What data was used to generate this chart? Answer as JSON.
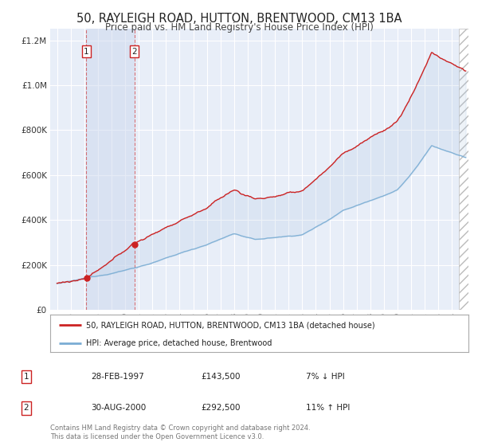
{
  "title": "50, RAYLEIGH ROAD, HUTTON, BRENTWOOD, CM13 1BA",
  "subtitle": "Price paid vs. HM Land Registry's House Price Index (HPI)",
  "title_fontsize": 10.5,
  "subtitle_fontsize": 8.5,
  "background_color": "#ffffff",
  "plot_bg_color": "#e8eef8",
  "grid_color": "#ffffff",
  "hpi_line_color": "#7aadd4",
  "price_line_color": "#cc2222",
  "sale1_date": 1997.16,
  "sale1_price": 143500,
  "sale2_date": 2000.67,
  "sale2_price": 292500,
  "legend_line1": "50, RAYLEIGH ROAD, HUTTON, BRENTWOOD, CM13 1BA (detached house)",
  "legend_line2": "HPI: Average price, detached house, Brentwood",
  "table_row1_num": "1",
  "table_row1_date": "28-FEB-1997",
  "table_row1_price": "£143,500",
  "table_row1_hpi": "7% ↓ HPI",
  "table_row2_num": "2",
  "table_row2_date": "30-AUG-2000",
  "table_row2_price": "£292,500",
  "table_row2_hpi": "11% ↑ HPI",
  "footnote": "Contains HM Land Registry data © Crown copyright and database right 2024.\nThis data is licensed under the Open Government Licence v3.0.",
  "xmin": 1994.5,
  "xmax": 2025.2,
  "ymin": 0,
  "ymax": 1250000,
  "hatch_region_start": 2024.5,
  "hatch_region_end": 2025.2
}
